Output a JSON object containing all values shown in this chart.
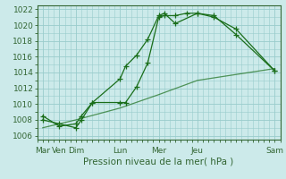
{
  "xlabel": "Pression niveau de la mer( hPa )",
  "ylim": [
    1005.5,
    1022.5
  ],
  "yticks": [
    1006,
    1008,
    1010,
    1012,
    1014,
    1016,
    1018,
    1020,
    1022
  ],
  "bg_color": "#cceaea",
  "grid_color": "#99cccc",
  "line_color": "#1a6e1a",
  "day_positions": {
    "Mar": 0,
    "Ven": 3,
    "Dim": 6,
    "Lun": 14,
    "Mer": 21,
    "Jeu": 28,
    "Sam": 42
  },
  "major_xtick_positions": [
    0,
    3,
    6,
    14,
    21,
    28,
    42
  ],
  "major_xtick_labels": [
    "Mar",
    "Ven",
    "Dim",
    "Lun",
    "Mer",
    "Jeu",
    "Sam"
  ],
  "line1_x": [
    0,
    3,
    6,
    7,
    9,
    14,
    15,
    17,
    19,
    21,
    22,
    24,
    28,
    31,
    35,
    42
  ],
  "line1_y": [
    1008,
    1007.5,
    1007,
    1008,
    1010.2,
    1013.2,
    1014.8,
    1016.2,
    1018.2,
    1021.2,
    1021.5,
    1020.2,
    1021.5,
    1021.2,
    1018.8,
    1014.2
  ],
  "line2_x": [
    0,
    3,
    6,
    7,
    9,
    14,
    15,
    17,
    19,
    21,
    22,
    24,
    26,
    28,
    31,
    35,
    42
  ],
  "line2_y": [
    1008.5,
    1007.2,
    1007.5,
    1008.5,
    1010.2,
    1010.2,
    1010.2,
    1012.2,
    1015.2,
    1021.0,
    1021.2,
    1021.2,
    1021.5,
    1021.5,
    1021.0,
    1019.5,
    1014.2
  ],
  "line3_x": [
    0,
    3,
    6,
    14,
    21,
    28,
    42
  ],
  "line3_y": [
    1007.0,
    1007.5,
    1008.0,
    1009.5,
    1011.2,
    1013.0,
    1014.5
  ]
}
